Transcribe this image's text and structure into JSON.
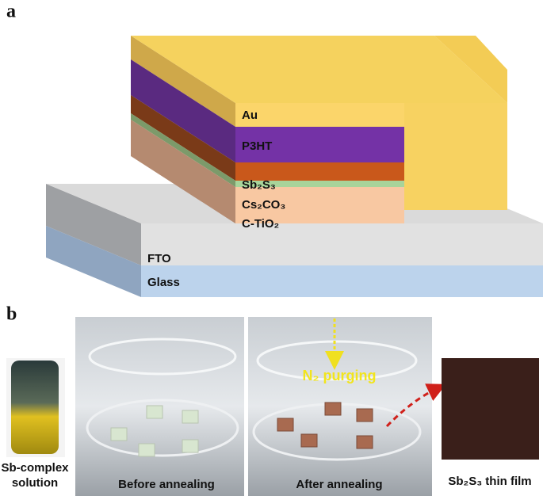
{
  "panel_a": {
    "label": "a",
    "layers": {
      "au": "Au",
      "p3ht": "P3HT",
      "sb2s3": "Sb₂S₃",
      "cs2co3": "Cs₂CO₃",
      "ctio2": "C-TiO₂",
      "fto": "FTO",
      "glass": "Glass"
    }
  },
  "panel_b": {
    "label": "b",
    "solution": [
      "Sb-complex",
      "solution"
    ],
    "before": "Before annealing",
    "purging": "N₂ purging",
    "after": "After annealing",
    "film": "Sb₂S₃ thin film"
  }
}
